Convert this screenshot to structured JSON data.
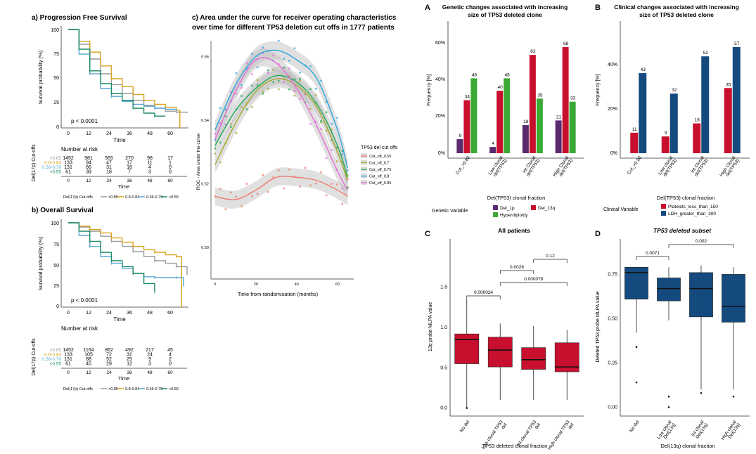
{
  "colors": {
    "km_gray": "#9a9a9a",
    "km_gold": "#d9a21b",
    "km_blue": "#5aaad4",
    "km_green": "#1e8a66",
    "bar_purple": "#5b2a6e",
    "bar_red": "#c8102e",
    "bar_green": "#3aaa35",
    "bar_navy": "#144a7e",
    "roc_red": "#f07a6e",
    "roc_olive": "#a7a72b",
    "roc_green": "#1faa55",
    "roc_blue": "#2aa7dd",
    "roc_pink": "#e66bd8"
  },
  "pfs": {
    "title": "a) Progression Free Survival",
    "ylabel": "Survival probability (%)",
    "xlabel": "Time",
    "pvalue": "p < 0.0001",
    "yticks": [
      "100",
      "75",
      "50",
      "25",
      "0"
    ],
    "xticks": [
      "0",
      "12",
      "24",
      "36",
      "48",
      "60"
    ],
    "risk_title": "Number at risk",
    "risk_ylabel": "Del(17p) Cut-offs",
    "risk_rows": [
      {
        "label": ">0.85",
        "vals": [
          "1452",
          "981",
          "565",
          "270",
          "98",
          "17"
        ]
      },
      {
        "label": "0.8-0.84",
        "vals": [
          "133",
          "94",
          "47",
          "17",
          "11",
          "1"
        ]
      },
      {
        "label": "0.56-0.79",
        "vals": [
          "131",
          "66",
          "31",
          "16",
          "4",
          "0"
        ]
      },
      {
        "label": "<0.55",
        "vals": [
          "61",
          "39",
          "18",
          "7",
          "3",
          "0"
        ]
      }
    ],
    "legend_title": "Del(17p) Cut-offs",
    "legend": [
      ">0.85",
      "0.8-0.84",
      "0.56-0.79",
      "<0.55"
    ]
  },
  "os": {
    "title": "b) Overall Survival",
    "ylabel": "Survival probability (%)",
    "xlabel": "Time",
    "pvalue": "p < 0.0001",
    "yticks": [
      "100",
      "75",
      "50",
      "25",
      "0"
    ],
    "xticks": [
      "0",
      "12",
      "24",
      "36",
      "48",
      "60"
    ],
    "risk_title": "Number at risk",
    "risk_ylabel": "Del(17p) Cut-offs",
    "risk_rows": [
      {
        "label": ">0.85",
        "vals": [
          "1452",
          "1164",
          "862",
          "492",
          "217",
          "45"
        ]
      },
      {
        "label": "0.8-0.84",
        "vals": [
          "133",
          "105",
          "72",
          "32",
          "24",
          "4"
        ]
      },
      {
        "label": "0.56-0.79",
        "vals": [
          "131",
          "88",
          "52",
          "25",
          "9",
          "2"
        ]
      },
      {
        "label": "<0.55",
        "vals": [
          "61",
          "45",
          "29",
          "12",
          "3",
          "0"
        ]
      }
    ],
    "legend_title": "Del(17p) Cut-offs",
    "legend": [
      ">0.85",
      "0.8-0.84",
      "0.56-0.79",
      "<0.55"
    ]
  },
  "roc": {
    "title_line1": "c) Area under the curve for receiver operating characteristics",
    "title_line2": "over time for different TP53 deletion cut offs in 1777 patients",
    "xlabel": "Time from randomisation (months)",
    "ylabel": "ROC - Area under the curve",
    "legend_title": "TP53 del cut offs",
    "yticks": [
      "0.56",
      "0.54",
      "0.52",
      "0.50"
    ],
    "xticks": [
      "0",
      "20",
      "40",
      "60"
    ]
  },
  "A": {
    "letter": "A",
    "title_line1": "Genetic changes associated with increasing",
    "title_line2": "size of TP53 deleted clone",
    "ylabel": "Frequency [%]",
    "xlabel": "Del(TP53) clonal fraction",
    "legend_label": "Genetic Variable",
    "yticks": [
      "60%",
      "40%",
      "20%",
      "0%"
    ]
  },
  "B": {
    "letter": "B",
    "title_line1": "Clinical changes associated with increasing",
    "title_line2": "size of TP53 deleted clone",
    "ylabel": "Frequency [%]",
    "xlabel": "Del(TP53) clonal fraction",
    "legend_label": "Clinical Variable",
    "yticks": [
      "40%",
      "20%",
      "0%"
    ]
  },
  "C": {
    "letter": "C",
    "title": "All patients",
    "ylabel": "13q probe MLPA value",
    "xlabel": "TP53 deleted clonal fraction",
    "yticks": [
      "1.5",
      "1.0",
      "0.5",
      "0.0"
    ],
    "pvals": [
      "0.000024",
      "0.0026",
      "0.12",
      "0.000078"
    ]
  },
  "D": {
    "letter": "D",
    "title": "TP53 deleted subset",
    "ylabel": "Deleted TP53 probe MLPA value",
    "xlabel": "Del(13q) clonal fraction",
    "yticks": [
      "0.75",
      "0.50",
      "0.25",
      "0.00"
    ],
    "pvals": [
      "0.0071",
      "0.002"
    ]
  },
  "chart_data": [
    {
      "type": "line",
      "title": "a) Progression Free Survival",
      "xlabel": "Time",
      "ylabel": "Survival probability (%)",
      "xlim": [
        0,
        66
      ],
      "ylim": [
        0,
        100
      ],
      "series": [
        {
          "name": ">0.85",
          "x": [
            0,
            6,
            12,
            18,
            24,
            30,
            36,
            42,
            48,
            54,
            60,
            66
          ],
          "y": [
            100,
            85,
            70,
            55,
            44,
            35,
            28,
            23,
            20,
            17,
            16,
            15
          ]
        },
        {
          "name": "0.8-0.84",
          "x": [
            0,
            6,
            12,
            18,
            24,
            30,
            36,
            42,
            48,
            54,
            60,
            62
          ],
          "y": [
            100,
            88,
            77,
            63,
            50,
            42,
            34,
            28,
            24,
            21,
            18,
            0
          ]
        },
        {
          "name": "0.56-0.79",
          "x": [
            0,
            6,
            12,
            18,
            24,
            30,
            36,
            42,
            48,
            54,
            60
          ],
          "y": [
            100,
            75,
            55,
            40,
            32,
            27,
            24,
            22,
            20,
            19,
            18
          ]
        },
        {
          "name": "<0.55",
          "x": [
            0,
            6,
            12,
            18,
            24,
            30,
            36,
            42,
            48,
            54
          ],
          "y": [
            100,
            80,
            58,
            45,
            35,
            28,
            20,
            15,
            12,
            12
          ]
        }
      ]
    },
    {
      "type": "line",
      "title": "b) Overall Survival",
      "xlabel": "Time",
      "ylabel": "Survival probability (%)",
      "xlim": [
        0,
        66
      ],
      "ylim": [
        0,
        100
      ],
      "series": [
        {
          "name": ">0.85",
          "x": [
            0,
            6,
            12,
            18,
            24,
            30,
            36,
            42,
            48,
            54,
            60,
            66
          ],
          "y": [
            100,
            95,
            90,
            84,
            78,
            72,
            66,
            60,
            55,
            52,
            48,
            38
          ]
        },
        {
          "name": "0.8-0.84",
          "x": [
            0,
            6,
            12,
            18,
            24,
            30,
            36,
            42,
            48,
            54,
            60,
            63
          ],
          "y": [
            100,
            96,
            92,
            88,
            82,
            77,
            72,
            68,
            65,
            62,
            60,
            0
          ]
        },
        {
          "name": "0.56-0.79",
          "x": [
            0,
            6,
            12,
            18,
            24,
            30,
            36,
            42,
            48,
            54,
            60,
            64
          ],
          "y": [
            100,
            85,
            72,
            60,
            52,
            46,
            40,
            36,
            35,
            35,
            35,
            25
          ]
        },
        {
          "name": "<0.55",
          "x": [
            0,
            6,
            12,
            18,
            24,
            30,
            36,
            42,
            48
          ],
          "y": [
            100,
            90,
            78,
            65,
            55,
            48,
            40,
            28,
            18
          ]
        }
      ]
    },
    {
      "type": "line",
      "title": "c) Area under the curve for receiver operating characteristics over time for different TP53 deletion cut offs in 1777 patients",
      "xlabel": "Time from randomisation (months)",
      "ylabel": "ROC - Area under the curve",
      "xlim": [
        -2,
        68
      ],
      "ylim": [
        0.49,
        0.565
      ],
      "series": [
        {
          "name": "Cut_off_0.55",
          "x": [
            0,
            10,
            20,
            30,
            40,
            50,
            60,
            65
          ],
          "y": [
            0.516,
            0.515,
            0.518,
            0.522,
            0.522,
            0.521,
            0.518,
            0.516
          ]
        },
        {
          "name": "Cut_off_0.7",
          "x": [
            0,
            10,
            20,
            30,
            40,
            50,
            60,
            65
          ],
          "y": [
            0.526,
            0.539,
            0.549,
            0.553,
            0.551,
            0.544,
            0.53,
            0.521
          ]
        },
        {
          "name": "Cut_off_0.75",
          "x": [
            0,
            10,
            20,
            30,
            40,
            50,
            60,
            65
          ],
          "y": [
            0.532,
            0.543,
            0.55,
            0.554,
            0.552,
            0.545,
            0.532,
            0.522
          ]
        },
        {
          "name": "Cut_off_0.8",
          "x": [
            0,
            10,
            20,
            30,
            40,
            50,
            60,
            65
          ],
          "y": [
            0.537,
            0.551,
            0.56,
            0.562,
            0.559,
            0.553,
            0.537,
            0.525
          ]
        },
        {
          "name": "Cut_off_0.85",
          "x": [
            0,
            10,
            20,
            30,
            40,
            50,
            60,
            65
          ],
          "y": [
            0.534,
            0.549,
            0.559,
            0.558,
            0.55,
            0.538,
            0.524,
            0.518
          ]
        }
      ]
    },
    {
      "type": "bar",
      "title": "Genetic changes associated with increasing size of TP53 deleted clone",
      "xlabel": "Del(TP53) clonal fraction",
      "ylabel": "Frequency [%]",
      "ylim": [
        0,
        72
      ],
      "categories": [
        "Cut_>0.80",
        "Low clonal del(TP53)",
        "Int Clonal del(TP53)",
        "High Clonal del(TP53)"
      ],
      "series": [
        {
          "name": "Del_1p",
          "values": [
            9,
            4,
            18,
            21
          ]
        },
        {
          "name": "Del_13q",
          "values": [
            34,
            40,
            63,
            68
          ]
        },
        {
          "name": "Hyperdiploidy",
          "values": [
            48,
            48,
            35,
            33
          ]
        }
      ]
    },
    {
      "type": "bar",
      "title": "Clinical changes associated with increasing size of TP53 deleted clone",
      "xlabel": "Del(TP53) clonal fraction",
      "ylabel": "Frequency [%]",
      "ylim": [
        0,
        60
      ],
      "categories": [
        "Cut_>0.80",
        "Low clonal del(TP53)",
        "Int Clonal del(TP53)",
        "High Clonal del(TP53)"
      ],
      "series": [
        {
          "name": "Platelets_less_than_150",
          "values": [
            11,
            9,
            16,
            35
          ]
        },
        {
          "name": "LDH_greater_than_300",
          "values": [
            43,
            32,
            52,
            57
          ]
        }
      ]
    },
    {
      "type": "box",
      "title": "All patients",
      "xlabel": "TP53 deleted clonal fraction",
      "ylabel": "13q probe MLPA value",
      "ylim": [
        -0.1,
        2.1
      ],
      "categories": [
        "No del",
        "Low clonal TP53 del",
        "Int clonal TP53 del",
        "High clonal TP53 del"
      ],
      "boxes": [
        {
          "min": 0.0,
          "q1": 0.55,
          "median": 0.85,
          "q3": 0.92,
          "max": 1.35,
          "outliers": [
            0.0
          ]
        },
        {
          "min": 0.1,
          "q1": 0.51,
          "median": 0.72,
          "q3": 0.88,
          "max": 1.05,
          "outliers": []
        },
        {
          "min": 0.1,
          "q1": 0.48,
          "median": 0.6,
          "q3": 0.75,
          "max": 1.02,
          "outliers": []
        },
        {
          "min": 0.1,
          "q1": 0.45,
          "median": 0.51,
          "q3": 0.81,
          "max": 0.97,
          "outliers": []
        }
      ]
    },
    {
      "type": "box",
      "title": "TP53 deleted subset",
      "xlabel": "Del(13q) clonal fraction",
      "ylabel": "Deleted TP53 probe MLPA value",
      "ylim": [
        -0.05,
        0.95
      ],
      "categories": [
        "No del",
        "Low clonal Del(13q)",
        "Int clonal Del(13q)",
        "High clonal Del(13q)"
      ],
      "boxes": [
        {
          "min": 0.42,
          "q1": 0.61,
          "median": 0.76,
          "q3": 0.79,
          "max": 0.79,
          "outliers": [
            0.34,
            0.14
          ]
        },
        {
          "min": 0.49,
          "q1": 0.6,
          "median": 0.67,
          "q3": 0.73,
          "max": 0.79,
          "outliers": [
            0.06,
            0.0
          ]
        },
        {
          "min": 0.1,
          "q1": 0.51,
          "median": 0.67,
          "q3": 0.76,
          "max": 0.8,
          "outliers": [
            0.08
          ]
        },
        {
          "min": 0.1,
          "q1": 0.48,
          "median": 0.57,
          "q3": 0.75,
          "max": 0.79,
          "outliers": [
            0.06
          ]
        }
      ]
    }
  ]
}
